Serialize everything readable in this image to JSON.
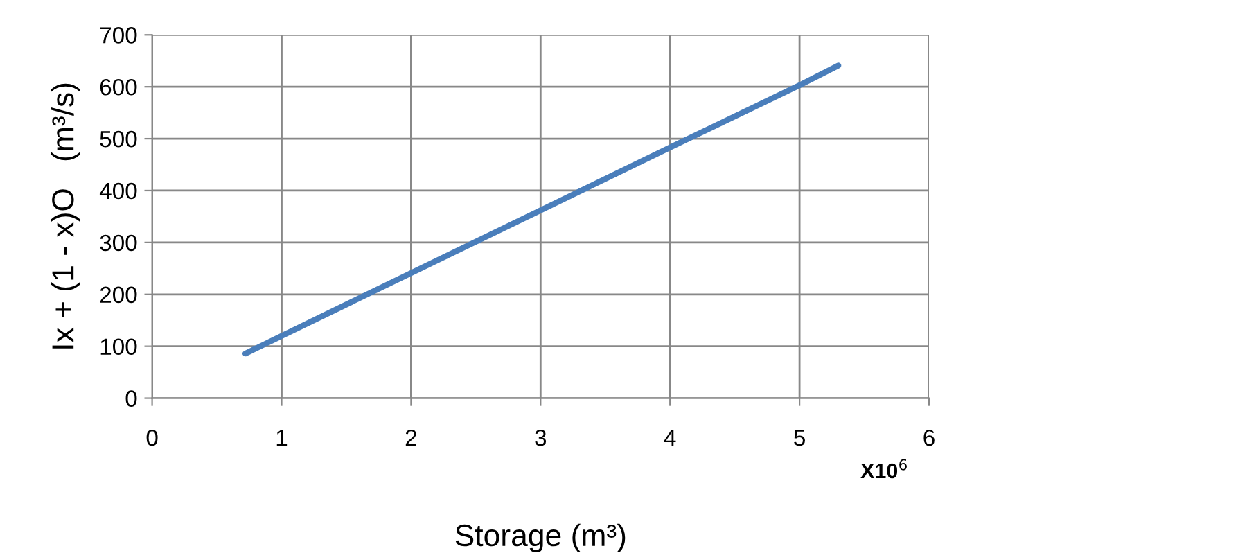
{
  "chart_data": {
    "type": "line",
    "xlabel": "Storage (m³)",
    "ylabel": "Ix + (1 - x)O   (m³/s)",
    "annotations": [
      "X10$^{6}$"
    ],
    "x": [
      0.72,
      1,
      2,
      3,
      4,
      5,
      5.3
    ],
    "series": [
      {
        "color": "#4a7ebb",
        "values": [
          86,
          120,
          241,
          362,
          483,
          603,
          641
        ]
      }
    ],
    "xlim": [
      0,
      6
    ],
    "xticks": [
      0,
      1,
      2,
      3,
      4,
      5,
      6
    ],
    "ylim": [
      0,
      700
    ],
    "yticks": [
      0,
      100,
      200,
      300,
      400,
      500,
      600,
      700
    ],
    "grid": true,
    "legend": false,
    "marker": "none",
    "line_style": "solid"
  }
}
